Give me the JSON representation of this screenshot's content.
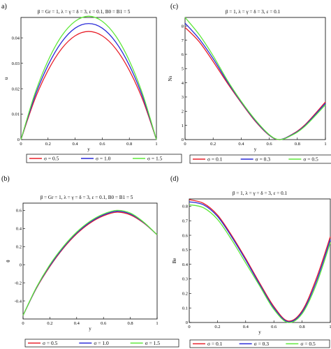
{
  "chart_data": [
    {
      "panel_label": "a)",
      "type": "line",
      "parameters": "β = Gr = 1,  λ = γ = δ = 3,  ε = 0.1,  B0 = B1 = 5",
      "xlabel": "y",
      "ylabel": "u",
      "xlim": [
        0,
        1
      ],
      "ylim": [
        0,
        0.048
      ],
      "xticks": [
        "0",
        "0.2",
        "0.4",
        "0.6",
        "0.8",
        "1"
      ],
      "yticks": [
        "0",
        "0.01",
        "0.02",
        "0.03",
        "0.04"
      ],
      "legend_position": "bottom",
      "series": [
        {
          "name": "σ = 0.5",
          "color": "#e8202a",
          "x": [
            0,
            0.1,
            0.2,
            0.3,
            0.4,
            0.5,
            0.6,
            0.7,
            0.8,
            0.9,
            1
          ],
          "y": [
            0,
            0.0155,
            0.0272,
            0.0357,
            0.0408,
            0.0425,
            0.0408,
            0.0357,
            0.0272,
            0.0155,
            0
          ]
        },
        {
          "name": "σ = 1.0",
          "color": "#2a2ad8",
          "x": [
            0,
            0.1,
            0.2,
            0.3,
            0.4,
            0.5,
            0.6,
            0.7,
            0.8,
            0.9,
            1
          ],
          "y": [
            0,
            0.0166,
            0.0292,
            0.0383,
            0.0438,
            0.0456,
            0.0438,
            0.0383,
            0.0292,
            0.0166,
            0
          ]
        },
        {
          "name": "σ = 1.5",
          "color": "#5fe83a",
          "x": [
            0,
            0.1,
            0.2,
            0.3,
            0.4,
            0.5,
            0.6,
            0.7,
            0.8,
            0.9,
            1
          ],
          "y": [
            0,
            0.0176,
            0.031,
            0.0407,
            0.0465,
            0.0485,
            0.0465,
            0.0407,
            0.031,
            0.0176,
            0
          ]
        }
      ]
    },
    {
      "panel_label": "(c)",
      "type": "line",
      "parameters": "β = 1,  λ = γ = δ = 3,  ε = 0.1",
      "xlabel": "y",
      "ylabel": "Ns",
      "xlim": [
        0,
        1
      ],
      "ylim": [
        0,
        8.6
      ],
      "xticks": [
        "0",
        "0.2",
        "0.4",
        "0.6",
        "0.8",
        "1"
      ],
      "yticks": [
        "0",
        "1",
        "2",
        "3",
        "4",
        "5",
        "6",
        "7",
        "8"
      ],
      "legend_position": "bottom",
      "series": [
        {
          "name": "σ = 0.1",
          "color": "#e8202a",
          "x": [
            0,
            0.1,
            0.2,
            0.3,
            0.4,
            0.5,
            0.6,
            0.67,
            0.75,
            0.85,
            1
          ],
          "y": [
            7.9,
            6.9,
            5.5,
            4.0,
            2.6,
            1.3,
            0.3,
            0.0,
            0.3,
            1.0,
            2.65
          ]
        },
        {
          "name": "σ = 0.3",
          "color": "#2a2ad8",
          "x": [
            0,
            0.1,
            0.2,
            0.3,
            0.4,
            0.5,
            0.6,
            0.67,
            0.75,
            0.85,
            1
          ],
          "y": [
            8.2,
            7.1,
            5.7,
            4.1,
            2.65,
            1.35,
            0.32,
            0.0,
            0.28,
            0.95,
            2.55
          ]
        },
        {
          "name": "σ = 0.5",
          "color": "#5fe83a",
          "x": [
            0,
            0.1,
            0.2,
            0.3,
            0.4,
            0.5,
            0.6,
            0.67,
            0.75,
            0.85,
            1
          ],
          "y": [
            8.6,
            7.4,
            5.9,
            4.2,
            2.7,
            1.4,
            0.35,
            0.0,
            0.25,
            0.9,
            2.45
          ]
        }
      ]
    },
    {
      "panel_label": "(b)",
      "type": "line",
      "parameters": "β = Gr = 1,  λ = γ = δ = 3,  ε = 0.1,  B0 = B1 = 5",
      "xlabel": "y",
      "ylabel": "θ",
      "xlim": [
        0,
        1
      ],
      "ylim": [
        -0.6,
        0.68
      ],
      "xticks": [
        "0",
        "0.2",
        "0.4",
        "0.6",
        "0.8",
        "1"
      ],
      "yticks": [
        "-0.4",
        "-0.2",
        "0",
        "0.2",
        "0.4",
        "0.6"
      ],
      "legend_position": "bottom",
      "series": [
        {
          "name": "σ = 0.5",
          "color": "#e8202a",
          "x": [
            0,
            0.1,
            0.2,
            0.3,
            0.4,
            0.5,
            0.6,
            0.7,
            0.8,
            0.9,
            1
          ],
          "y": [
            -0.56,
            -0.26,
            -0.02,
            0.18,
            0.34,
            0.46,
            0.54,
            0.58,
            0.55,
            0.46,
            0.33
          ]
        },
        {
          "name": "σ = 1.0",
          "color": "#2a2ad8",
          "x": [
            0,
            0.1,
            0.2,
            0.3,
            0.4,
            0.5,
            0.6,
            0.7,
            0.8,
            0.9,
            1
          ],
          "y": [
            -0.56,
            -0.255,
            -0.01,
            0.19,
            0.35,
            0.47,
            0.55,
            0.59,
            0.56,
            0.465,
            0.33
          ]
        },
        {
          "name": "σ = 1.5",
          "color": "#5fe83a",
          "x": [
            0,
            0.1,
            0.2,
            0.3,
            0.4,
            0.5,
            0.6,
            0.7,
            0.8,
            0.9,
            1
          ],
          "y": [
            -0.56,
            -0.25,
            0.0,
            0.2,
            0.36,
            0.48,
            0.56,
            0.6,
            0.57,
            0.47,
            0.33
          ]
        }
      ]
    },
    {
      "panel_label": "(d)",
      "type": "line",
      "parameters": "β = 1,  λ = γ = δ = 3,  ε = 0.1",
      "xlabel": "y",
      "ylabel": "Be",
      "xlim": [
        0,
        1
      ],
      "ylim": [
        0,
        0.85
      ],
      "xticks": [
        "0",
        "0.2",
        "0.4",
        "0.6",
        "0.8",
        "1"
      ],
      "yticks": [
        "0",
        "0.1",
        "0.2",
        "0.3",
        "0.4",
        "0.5",
        "0.6",
        "0.7",
        "0.8"
      ],
      "legend_position": "bottom",
      "series": [
        {
          "name": "σ = 0.1",
          "color": "#e8202a",
          "x": [
            0,
            0.1,
            0.2,
            0.3,
            0.4,
            0.5,
            0.6,
            0.7,
            0.8,
            0.9,
            1
          ],
          "y": [
            0.845,
            0.82,
            0.74,
            0.6,
            0.44,
            0.27,
            0.11,
            0.01,
            0.08,
            0.3,
            0.59
          ]
        },
        {
          "name": "σ = 0.3",
          "color": "#2a2ad8",
          "x": [
            0,
            0.1,
            0.2,
            0.3,
            0.4,
            0.5,
            0.6,
            0.7,
            0.8,
            0.9,
            1
          ],
          "y": [
            0.83,
            0.81,
            0.73,
            0.59,
            0.43,
            0.26,
            0.1,
            0.005,
            0.07,
            0.28,
            0.57
          ]
        },
        {
          "name": "σ = 0.5",
          "color": "#5fe83a",
          "x": [
            0,
            0.1,
            0.2,
            0.3,
            0.4,
            0.5,
            0.6,
            0.7,
            0.8,
            0.9,
            1
          ],
          "y": [
            0.81,
            0.79,
            0.71,
            0.57,
            0.41,
            0.25,
            0.09,
            0.0,
            0.06,
            0.26,
            0.55
          ]
        }
      ]
    }
  ]
}
